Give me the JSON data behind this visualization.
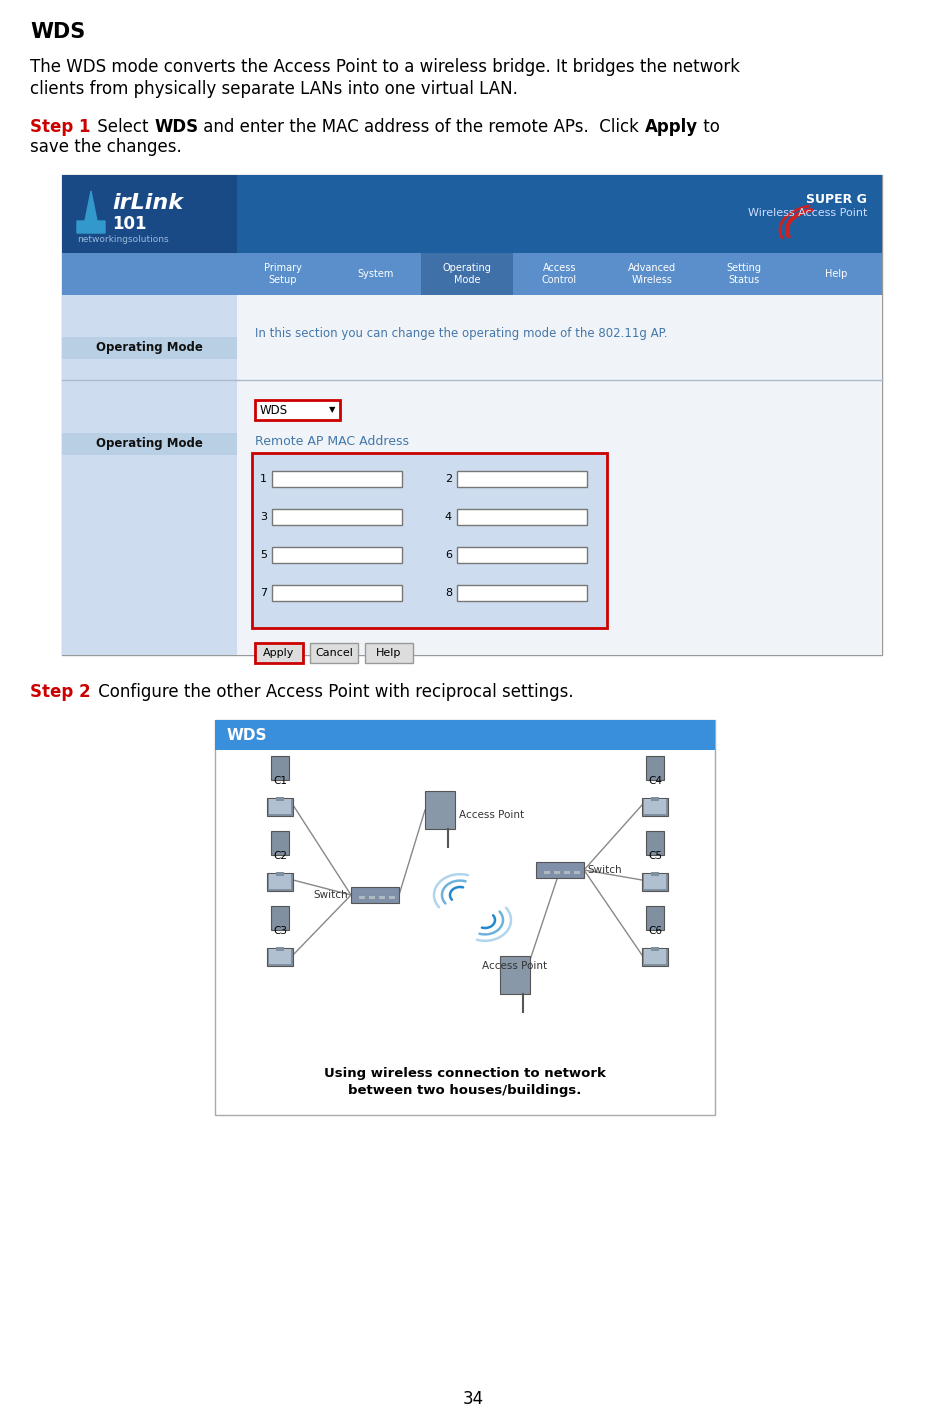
{
  "title": "WDS",
  "page_number": "34",
  "background_color": "#ffffff",
  "body_line1": "The WDS mode converts the Access Point to a wireless bridge. It bridges the network",
  "body_line2": "clients from physically separate LANs into one virtual LAN.",
  "step1_label": "Step 1",
  "step1_rest_line1": " Select WDS and enter the MAC address of the remote APs.  Click Apply to",
  "step1_rest_line1_plain1": " Select ",
  "step1_bold1": "WDS",
  "step1_plain2": " and enter the MAC address of the remote APs.  Click ",
  "step1_bold2": "Apply",
  "step1_plain3": " to",
  "step1_line2": "save the changes.",
  "step2_label": "Step 2",
  "step2_text": " Configure the other Access Point with reciprocal settings.",
  "step_color": "#cc0000",
  "text_color": "#000000",
  "nav_items": [
    "Primary\nSetup",
    "System",
    "Operating\nMode",
    "Access\nControl",
    "Advanced\nWireless",
    "Setting\nStatus",
    "Help"
  ],
  "operating_mode_desc": "In this section you can change the operating mode of the 802.11g AP.",
  "dropdown_text": "WDS",
  "remote_ap_label": "Remote AP MAC Address",
  "wds_diagram_title": "WDS",
  "wds_caption": "Using wireless connection to network\nbetween two houses/buildings.",
  "header_dark": "#1e5fa0",
  "header_logo_bg": "#1a4a85",
  "nav_color": "#5a8fcc",
  "nav_highlight": "#4070a8",
  "sidebar_color": "#cddcee",
  "content_color": "#e8f0f8",
  "sidebar_label_bg": "#b8cfe4",
  "desc_color": "#4477aa",
  "red_border": "#cc0000",
  "wds_header_color": "#3a8fdd",
  "diagram_bg": "#ffffff"
}
